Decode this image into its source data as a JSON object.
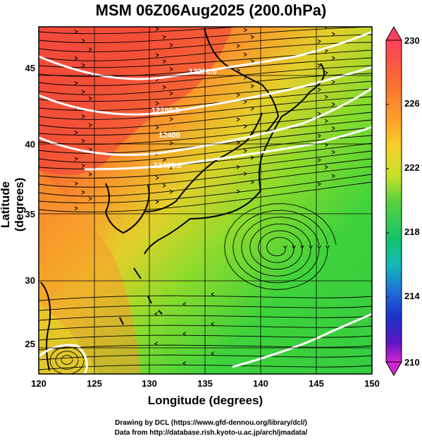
{
  "title": "MSM 06Z06Aug2025 (200.0hPa)",
  "xlabel": "Longitude (degrees)",
  "ylabel": "Latitude  (degrees)",
  "credits": [
    "Drawing by DCL (https://www.gfd-dennou.org/library/dcl/)",
    "Data from http://database.rish.kyoto-u.ac.jp/arch/jmadata/"
  ],
  "x_ticks": [
    "120",
    "125",
    "130",
    "135",
    "140",
    "145",
    "150"
  ],
  "y_ticks": [
    "25",
    "30",
    "35",
    "40",
    "45"
  ],
  "colorbar": {
    "ticks": [
      "230",
      "226",
      "222",
      "218",
      "214",
      "210"
    ],
    "colors": [
      "#ff3f5f",
      "#f86a30",
      "#ffa02a",
      "#f6d02a",
      "#c6e02a",
      "#5ad23e",
      "#15c26d",
      "#13b8b8",
      "#1f6fd8",
      "#1c32c8",
      "#5e15c2",
      "#d225d0"
    ]
  },
  "contour_labels": [
    "12200.0",
    "12300.0",
    "12400",
    "12400.0"
  ],
  "field_colors": {
    "warm": "#f24a3c",
    "orange": "#f89a2c",
    "yellow": "#e2d02a",
    "lightgreen": "#8edb2c",
    "green": "#3fd23c"
  }
}
